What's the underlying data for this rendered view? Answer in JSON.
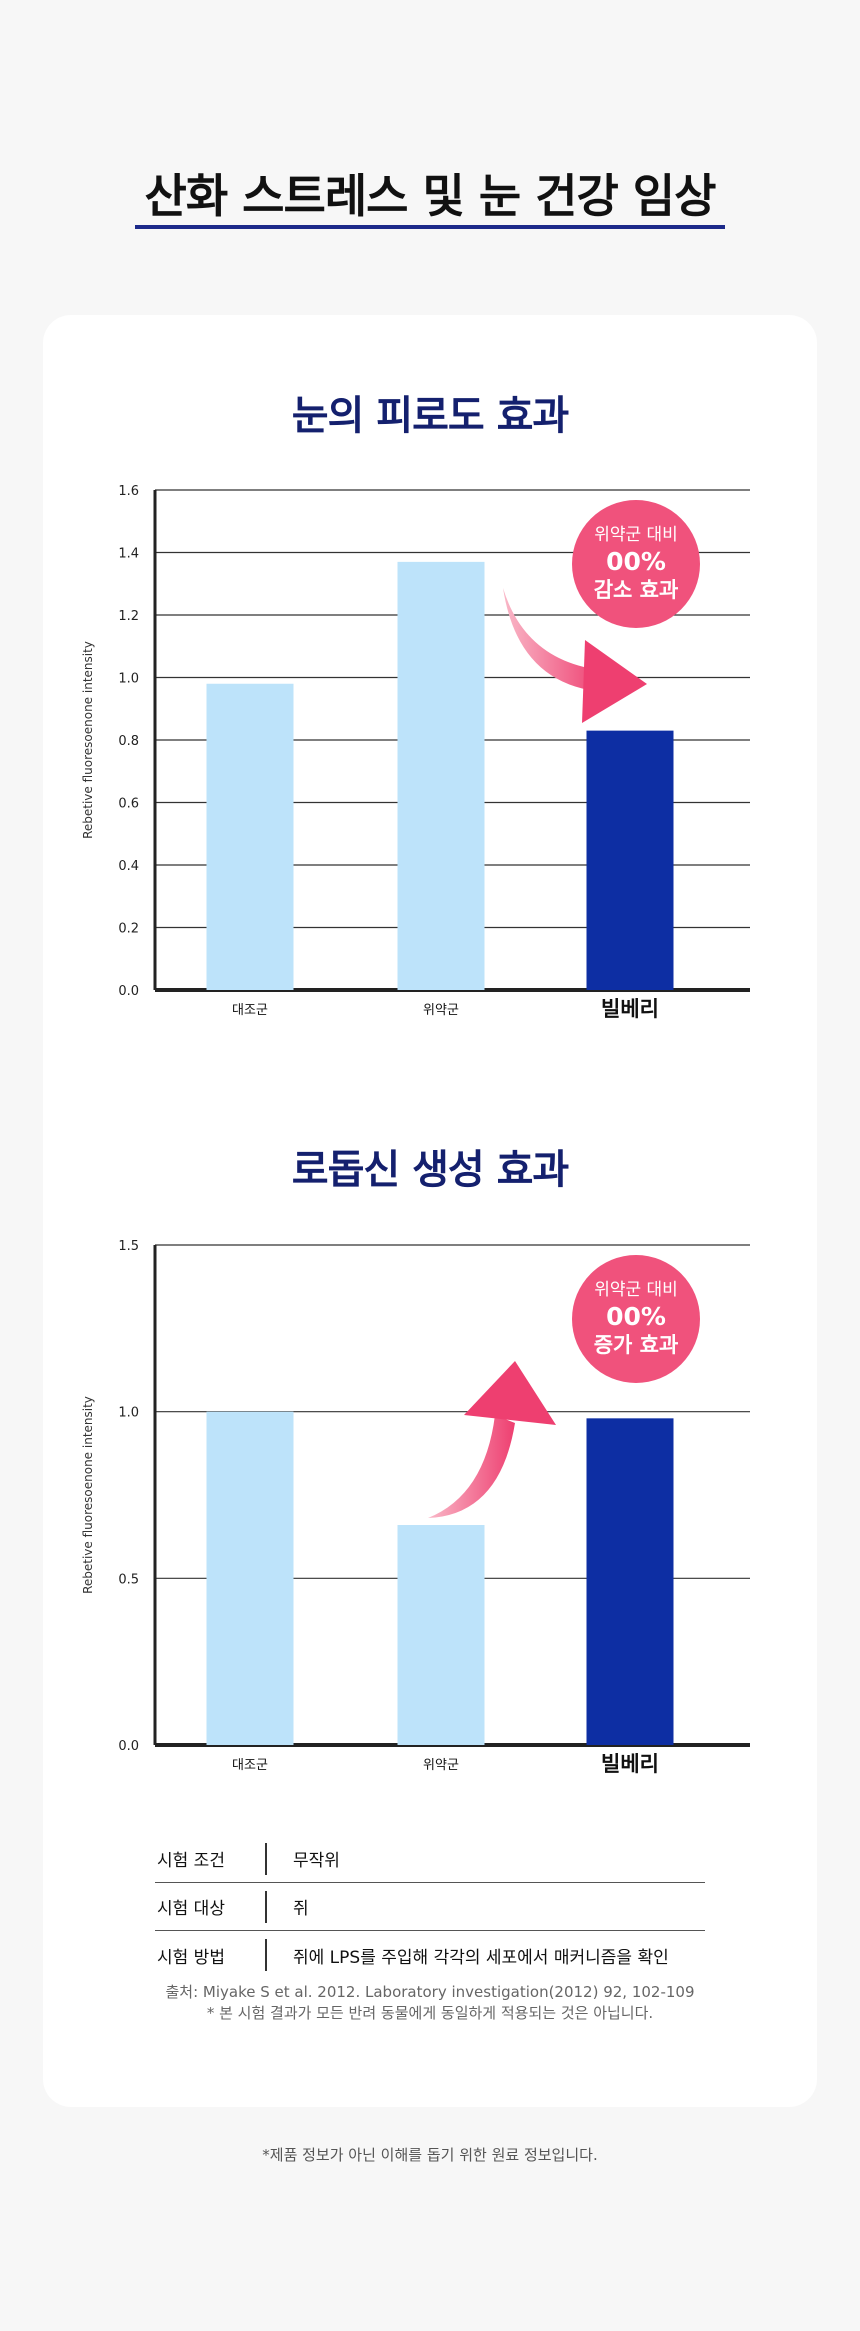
{
  "header": {
    "title": "산화 스트레스 및 눈 건강 임상"
  },
  "colors": {
    "control_bar": "#bde3fa",
    "product_bar": "#0d2ea3",
    "title_navy": "#14206e",
    "underline": "#1d2a8a",
    "callout": "#f0527c",
    "arrow_light": "#f9b8c8",
    "arrow_dark": "#ee3f70"
  },
  "chart_data": [
    {
      "type": "bar",
      "title": "눈의 피로도 효과",
      "ylabel": "Rebetive fluoresoenone intensity",
      "xlabel": "",
      "categories": [
        "대조군",
        "위약군",
        "빌베리"
      ],
      "values": [
        0.98,
        1.37,
        0.83
      ],
      "ylim": [
        0,
        1.6
      ],
      "yticks": [
        "0.0",
        "0.2",
        "0.4",
        "0.6",
        "0.8",
        "1.0",
        "1.2",
        "1.4",
        "1.6"
      ],
      "grid": true,
      "callout": {
        "line1": "위약군 대비",
        "line2": "00%",
        "line3": "감소 효과"
      }
    },
    {
      "type": "bar",
      "title": "로돕신 생성 효과",
      "ylabel": "Rebetive fluoresoenone intensity",
      "xlabel": "",
      "categories": [
        "대조군",
        "위약군",
        "빌베리"
      ],
      "values": [
        1.0,
        0.66,
        0.98
      ],
      "ylim": [
        0,
        1.5
      ],
      "yticks": [
        "0.0",
        "0.5",
        "1.0",
        "1.5"
      ],
      "grid": true,
      "callout": {
        "line1": "위약군 대비",
        "line2": "00%",
        "line3": "증가 효과"
      }
    }
  ],
  "info_table": [
    {
      "label": "시험 조건",
      "value": "무작위"
    },
    {
      "label": "시험 대상",
      "value": "쥐"
    },
    {
      "label": "시험 방법",
      "value": "쥐에 LPS를 주입해 각각의 세포에서 매커니즘을 확인"
    }
  ],
  "source": {
    "citation": "출처: Miyake S et al. 2012. Laboratory investigation(2012) 92, 102-109",
    "disclaimer": "* 본 시험 결과가 모든 반려 동물에게 동일하게 적용되는 것은 아닙니다."
  },
  "footnote": "*제품 정보가 아닌 이해를 돕기 위한 원료 정보입니다."
}
